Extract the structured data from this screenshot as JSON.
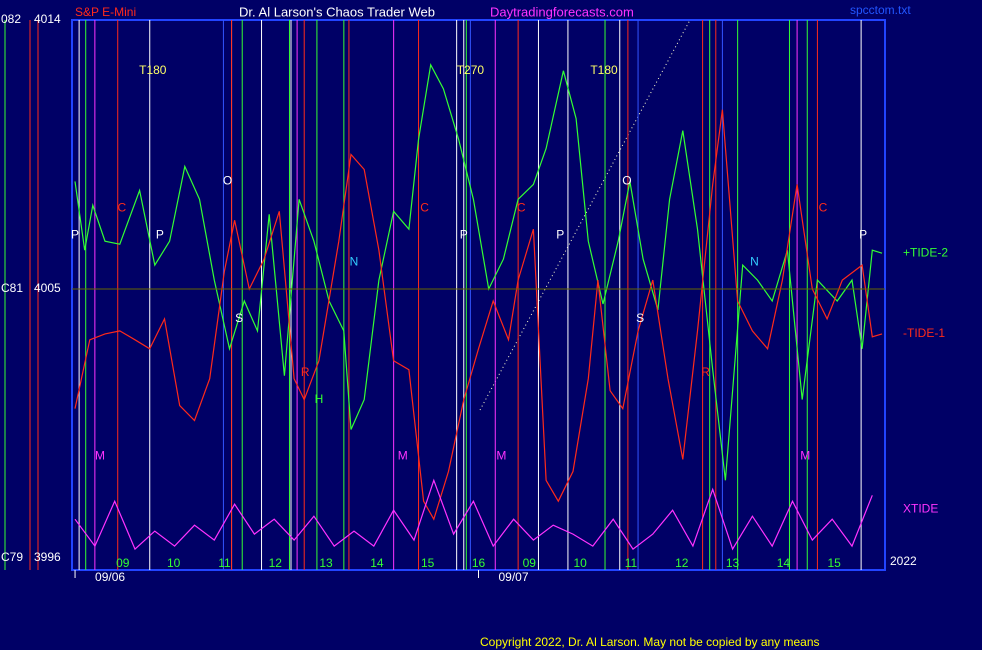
{
  "chart_data": {
    "type": "line",
    "title": "Dr. Al Larson's Chaos Trader Web",
    "symbol": "S&P E-Mini",
    "website": "Daytradingforecasts.com",
    "file_name": "spcctom.txt",
    "copyright": "Copyright 2022, Dr. Al Larson. May not be copied by any means",
    "year": "2022",
    "xlim": [
      0,
      16
    ],
    "ylim": [
      3995.6,
      4014.0
    ],
    "yticks": [
      3996,
      4005,
      4014
    ],
    "left_labels": [
      "C79",
      "C81",
      "082"
    ],
    "xticks": [
      {
        "value": 1,
        "label": "09"
      },
      {
        "value": 2,
        "label": "10"
      },
      {
        "value": 3,
        "label": "11"
      },
      {
        "value": 4,
        "label": "12"
      },
      {
        "value": 5,
        "label": "13"
      },
      {
        "value": 6,
        "label": "14"
      },
      {
        "value": 7,
        "label": "15"
      },
      {
        "value": 8,
        "label": "16"
      },
      {
        "value": 9,
        "label": "09"
      },
      {
        "value": 10,
        "label": "10"
      },
      {
        "value": 11,
        "label": "11"
      },
      {
        "value": 12,
        "label": "12"
      },
      {
        "value": 13,
        "label": "13"
      },
      {
        "value": 14,
        "label": "14"
      },
      {
        "value": 15,
        "label": "15"
      }
    ],
    "dates": [
      {
        "value": 0.06,
        "label": "09/06"
      },
      {
        "value": 8.0,
        "label": "09/07"
      }
    ],
    "series": [
      {
        "name": "+TIDE-2",
        "color": "#33ff33",
        "x": [
          0.06,
          0.25,
          0.41,
          0.65,
          0.94,
          1.33,
          1.63,
          1.92,
          2.22,
          2.51,
          2.8,
          3.1,
          3.39,
          3.65,
          3.88,
          4.18,
          4.47,
          4.76,
          5.06,
          5.35,
          5.49,
          5.75,
          6.04,
          6.33,
          6.63,
          6.82,
          7.06,
          7.31,
          7.61,
          7.9,
          8.2,
          8.49,
          8.78,
          9.08,
          9.33,
          9.67,
          9.92,
          10.16,
          10.45,
          10.75,
          10.98,
          11.24,
          11.53,
          11.76,
          12.02,
          12.31,
          12.61,
          12.86,
          13.2,
          13.49,
          13.78,
          14.08,
          14.37,
          14.67,
          15.06,
          15.35,
          15.55,
          15.75,
          15.94
        ],
        "values": [
          4008.6,
          4006.3,
          4007.8,
          4006.6,
          4006.5,
          4008.3,
          4005.8,
          4006.6,
          4009.1,
          4008.0,
          4005.3,
          4003.0,
          4004.6,
          4003.6,
          4007.5,
          4002.1,
          4008.0,
          4006.6,
          4004.6,
          4003.6,
          4000.3,
          4001.3,
          4005.3,
          4007.6,
          4007.0,
          4010.0,
          4012.5,
          4011.7,
          4010.0,
          4008.0,
          4005.0,
          4006.0,
          4008.0,
          4008.5,
          4009.7,
          4012.3,
          4010.7,
          4006.6,
          4004.5,
          4006.6,
          4008.6,
          4006.0,
          4004.3,
          4008.0,
          4010.3,
          4007.0,
          4002.3,
          3998.6,
          4005.8,
          4005.3,
          4004.6,
          4006.3,
          4001.3,
          4005.3,
          4004.6,
          4005.3,
          4003.0,
          4006.3,
          4006.2
        ]
      },
      {
        "name": "-TIDE-1",
        "color": "#ff2a1a",
        "x": [
          0.06,
          0.35,
          0.65,
          0.94,
          1.24,
          1.53,
          1.82,
          2.12,
          2.41,
          2.71,
          3.0,
          3.2,
          3.49,
          3.78,
          4.08,
          4.37,
          4.57,
          4.86,
          5.25,
          5.49,
          5.75,
          6.04,
          6.33,
          6.63,
          6.92,
          7.12,
          7.41,
          7.71,
          8.0,
          8.29,
          8.59,
          8.78,
          9.08,
          9.33,
          9.57,
          9.86,
          10.16,
          10.35,
          10.59,
          10.84,
          11.14,
          11.43,
          11.73,
          12.02,
          12.31,
          12.61,
          12.8,
          13.1,
          13.39,
          13.69,
          13.98,
          14.27,
          14.57,
          14.86,
          15.16,
          15.55,
          15.75,
          15.94
        ],
        "values": [
          4001.0,
          4003.3,
          4003.5,
          4003.6,
          4003.3,
          4003.0,
          4004.0,
          4001.1,
          4000.6,
          4002.0,
          4005.6,
          4007.3,
          4005.0,
          4006.0,
          4007.6,
          4002.0,
          4001.3,
          4002.6,
          4006.6,
          4009.5,
          4009.0,
          4006.3,
          4002.6,
          4002.3,
          3997.9,
          3997.3,
          3998.9,
          4001.3,
          4003.0,
          4004.6,
          4003.3,
          4005.3,
          4007.0,
          3998.6,
          3997.9,
          3998.9,
          4002.0,
          4005.3,
          4001.6,
          4001.0,
          4003.6,
          4005.3,
          4002.0,
          3999.3,
          4003.6,
          4008.5,
          4011.0,
          4004.6,
          4003.6,
          4003.0,
          4005.3,
          4008.5,
          4005.0,
          4004.0,
          4005.3,
          4005.8,
          4003.4,
          4003.5
        ]
      },
      {
        "name": "XTIDE",
        "color": "#ff33ff",
        "x": [
          0.06,
          0.45,
          0.84,
          1.24,
          1.63,
          2.02,
          2.41,
          2.8,
          3.2,
          3.59,
          3.98,
          4.37,
          4.76,
          5.16,
          5.55,
          5.94,
          6.33,
          6.73,
          7.12,
          7.51,
          7.9,
          8.29,
          8.69,
          9.08,
          9.47,
          9.86,
          10.25,
          10.65,
          11.04,
          11.43,
          11.82,
          12.22,
          12.61,
          13.0,
          13.39,
          13.78,
          14.18,
          14.57,
          14.96,
          15.35,
          15.75
        ],
        "values": [
          3997.3,
          3996.4,
          3997.9,
          3996.3,
          3996.9,
          3996.4,
          3997.1,
          3996.6,
          3997.8,
          3996.8,
          3997.3,
          3996.6,
          3997.4,
          3996.4,
          3996.9,
          3996.4,
          3997.6,
          3996.6,
          3998.6,
          3996.8,
          3997.9,
          3996.4,
          3997.3,
          3996.6,
          3997.1,
          3996.8,
          3996.4,
          3997.3,
          3996.3,
          3996.8,
          3997.6,
          3996.4,
          3998.3,
          3996.3,
          3997.4,
          3996.4,
          3997.9,
          3996.6,
          3997.3,
          3996.4,
          3998.1
        ]
      }
    ],
    "vlines": [
      {
        "x": 0.14,
        "color": "#ffffff"
      },
      {
        "x": 0.27,
        "color": "#33ff33"
      },
      {
        "x": 0.45,
        "color": "#ff33ff"
      },
      {
        "x": 0.9,
        "color": "#ff2a1a"
      },
      {
        "x": 1.53,
        "color": "#ffffff"
      },
      {
        "x": 2.98,
        "color": "#3355ff"
      },
      {
        "x": 3.14,
        "color": "#ffffff"
      },
      {
        "x": 3.14,
        "color": "#ff2a1a"
      },
      {
        "x": 3.35,
        "color": "#33ff33"
      },
      {
        "x": 3.73,
        "color": "#ffffff"
      },
      {
        "x": 4.28,
        "color": "#33ff33"
      },
      {
        "x": 4.31,
        "color": "#ffffff"
      },
      {
        "x": 4.43,
        "color": "#ff33ff"
      },
      {
        "x": 4.57,
        "color": "#ff2a1a"
      },
      {
        "x": 4.82,
        "color": "#33ff33"
      },
      {
        "x": 5.35,
        "color": "#33ff33"
      },
      {
        "x": 5.45,
        "color": "#ff2a1a"
      },
      {
        "x": 6.33,
        "color": "#ff33ff"
      },
      {
        "x": 6.82,
        "color": "#ff2a1a"
      },
      {
        "x": 7.57,
        "color": "#ffffff"
      },
      {
        "x": 7.71,
        "color": "#ffffff"
      },
      {
        "x": 7.76,
        "color": "#33ff33"
      },
      {
        "x": 7.84,
        "color": "#3355ff"
      },
      {
        "x": 8.33,
        "color": "#ff33ff"
      },
      {
        "x": 8.78,
        "color": "#ff2a1a"
      },
      {
        "x": 9.18,
        "color": "#ffffff"
      },
      {
        "x": 9.76,
        "color": "#ffffff"
      },
      {
        "x": 10.49,
        "color": "#33ff33"
      },
      {
        "x": 10.78,
        "color": "#ffffff"
      },
      {
        "x": 10.94,
        "color": "#ff2a1a"
      },
      {
        "x": 11.14,
        "color": "#3355ff"
      },
      {
        "x": 12.41,
        "color": "#ff2a1a"
      },
      {
        "x": 12.55,
        "color": "#33ff33"
      },
      {
        "x": 12.67,
        "color": "#ff2a1a"
      },
      {
        "x": 12.8,
        "color": "#3355ff"
      },
      {
        "x": 13.1,
        "color": "#33ff33"
      },
      {
        "x": 14.12,
        "color": "#33ff33"
      },
      {
        "x": 14.27,
        "color": "#ff33ff"
      },
      {
        "x": 14.47,
        "color": "#33ff33"
      },
      {
        "x": 14.67,
        "color": "#ff2a1a"
      },
      {
        "x": 15.53,
        "color": "#ffffff"
      }
    ],
    "annotations": [
      {
        "text": "T180",
        "x": 1.59,
        "y": 4012.3,
        "color": "#ffff66"
      },
      {
        "text": "T270",
        "x": 7.84,
        "y": 4012.3,
        "color": "#ffff66"
      },
      {
        "text": "T180",
        "x": 10.47,
        "y": 4012.3,
        "color": "#ffff66"
      },
      {
        "text": "P",
        "x": 0.06,
        "y": 4006.8,
        "color": "#ffffff"
      },
      {
        "text": "P",
        "x": 1.73,
        "y": 4006.8,
        "color": "#ffffff"
      },
      {
        "text": "P",
        "x": 7.71,
        "y": 4006.8,
        "color": "#ffffff"
      },
      {
        "text": "P",
        "x": 9.61,
        "y": 4006.8,
        "color": "#ffffff"
      },
      {
        "text": "P",
        "x": 15.57,
        "y": 4006.8,
        "color": "#ffffff"
      },
      {
        "text": "C",
        "x": 0.98,
        "y": 4007.7,
        "color": "#ff2a1a"
      },
      {
        "text": "C",
        "x": 6.94,
        "y": 4007.7,
        "color": "#ff2a1a"
      },
      {
        "text": "C",
        "x": 8.84,
        "y": 4007.7,
        "color": "#ff2a1a"
      },
      {
        "text": "C",
        "x": 14.78,
        "y": 4007.7,
        "color": "#ff2a1a"
      },
      {
        "text": "O",
        "x": 3.06,
        "y": 4008.6,
        "color": "#ffffff"
      },
      {
        "text": "O",
        "x": 10.92,
        "y": 4008.6,
        "color": "#ffffff"
      },
      {
        "text": "S",
        "x": 3.29,
        "y": 4004.0,
        "color": "#ffffff"
      },
      {
        "text": "S",
        "x": 11.18,
        "y": 4004.0,
        "color": "#ffffff"
      },
      {
        "text": "N",
        "x": 5.55,
        "y": 4005.9,
        "color": "#33ccff"
      },
      {
        "text": "N",
        "x": 13.43,
        "y": 4005.9,
        "color": "#33ccff"
      },
      {
        "text": "M",
        "x": 0.55,
        "y": 3999.4,
        "color": "#ff33ff"
      },
      {
        "text": "M",
        "x": 6.51,
        "y": 3999.4,
        "color": "#ff33ff"
      },
      {
        "text": "M",
        "x": 8.45,
        "y": 3999.4,
        "color": "#ff33ff"
      },
      {
        "text": "M",
        "x": 14.43,
        "y": 3999.4,
        "color": "#ff33ff"
      },
      {
        "text": "H",
        "x": 4.86,
        "y": 4001.3,
        "color": "#33ff33"
      },
      {
        "text": "R",
        "x": 4.59,
        "y": 4002.2,
        "color": "#ff2a1a"
      },
      {
        "text": "R",
        "x": 12.47,
        "y": 4002.2,
        "color": "#ff2a1a"
      }
    ]
  }
}
